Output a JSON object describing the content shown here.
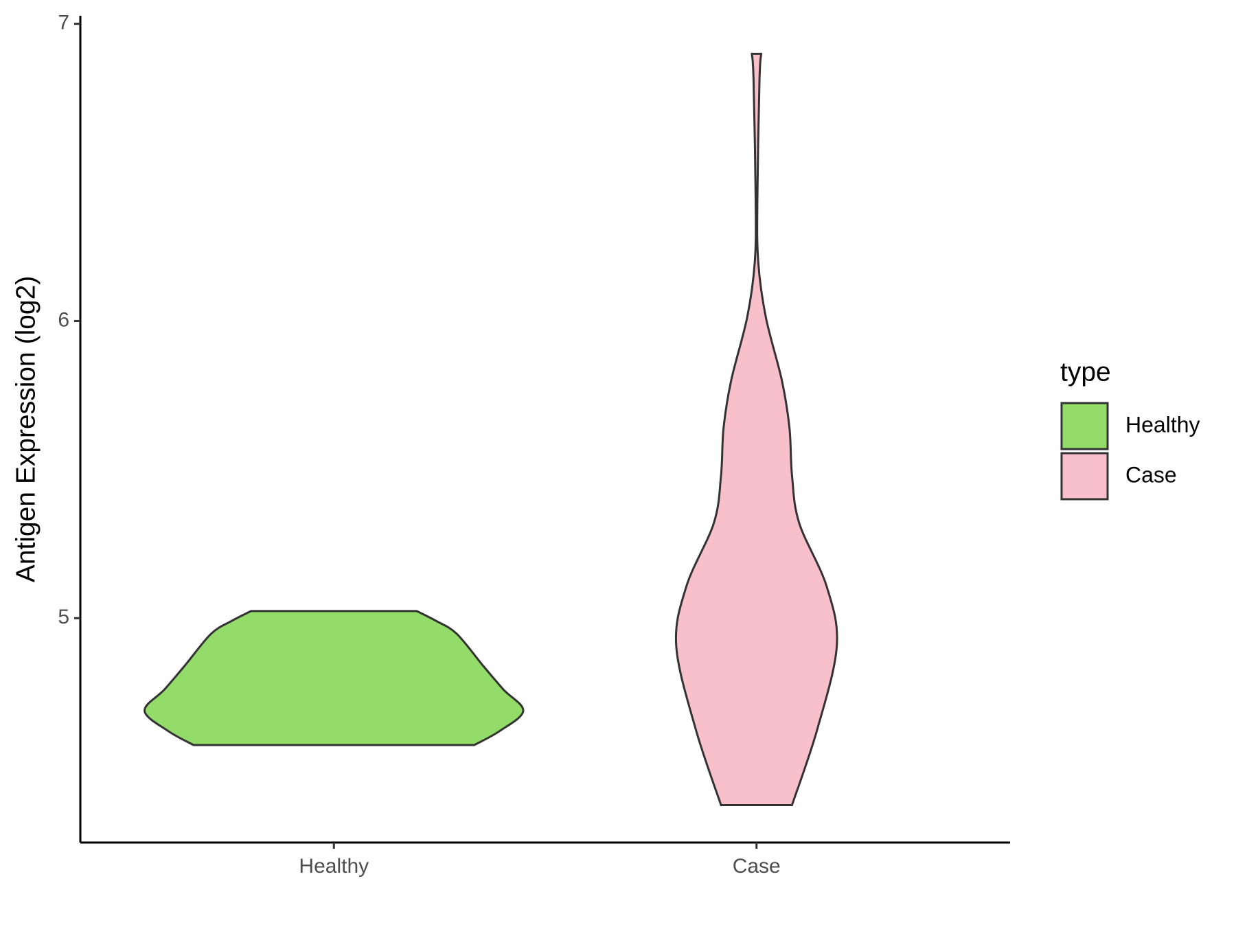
{
  "chart_data": {
    "type": "violin",
    "y_label": "Antigen Expression (log2)",
    "categories": [
      "Healthy",
      "Case"
    ],
    "series": [
      {
        "name": "Healthy",
        "color": "#93dc69",
        "y": [
          4.573,
          4.62,
          4.688,
          4.76,
          4.84,
          4.947,
          4.99,
          5.024
        ],
        "density": [
          0.332,
          0.392,
          0.448,
          0.401,
          0.353,
          0.291,
          0.243,
          0.196
        ]
      },
      {
        "name": "Case",
        "color": "#f8c0cb",
        "y": [
          4.371,
          4.627,
          4.907,
          5.107,
          5.32,
          5.48,
          5.64,
          5.8,
          6.013,
          6.2,
          6.41,
          6.81,
          6.899
        ],
        "density": [
          0.084,
          0.144,
          0.19,
          0.166,
          0.101,
          0.084,
          0.078,
          0.06,
          0.022,
          0.004,
          0.002,
          0.007,
          0.011
        ]
      }
    ],
    "ylim": [
      4.245,
      7.027
    ],
    "yticks": [
      5,
      6,
      7
    ],
    "legend_title": "type",
    "legend": "right"
  }
}
